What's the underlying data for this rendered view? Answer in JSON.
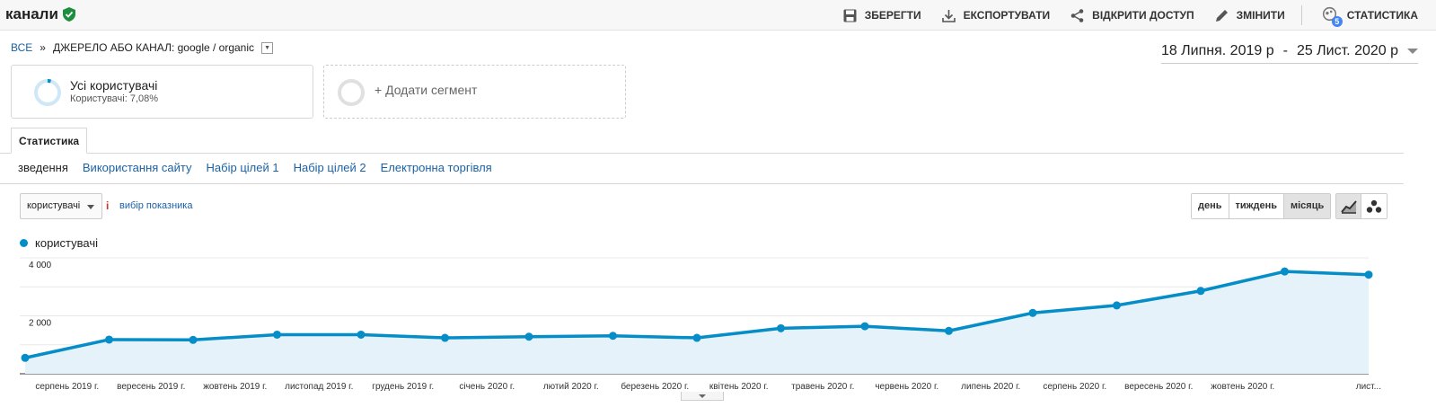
{
  "header": {
    "title": "канали",
    "actions": [
      {
        "label": "ЗБЕРЕГТИ",
        "icon": "save-icon"
      },
      {
        "label": "ЕКСПОРТУВАТИ",
        "icon": "download-icon"
      },
      {
        "label": "ВІДКРИТИ ДОСТУП",
        "icon": "share-icon"
      },
      {
        "label": "ЗМІНИТИ",
        "icon": "pencil-icon"
      },
      {
        "label": "СТАТИСТИКА",
        "icon": "insights-icon",
        "badge": "5"
      }
    ]
  },
  "breadcrumb": {
    "root": "ВСЕ",
    "separator": "»",
    "filter": "ДЖЕРЕЛО АБО КАНАЛ:",
    "value": "google / organic"
  },
  "date_range": {
    "start": "18 Липня. 2019 р",
    "dash": "-",
    "end": "25 Лист. 2020 р"
  },
  "segments": {
    "all_users": {
      "title": "Усі користувачі",
      "subtitle": "Користувачі: 7,08%"
    },
    "add": {
      "label": "+ Додати сегмент"
    }
  },
  "tabs": [
    {
      "label": "Статистика"
    }
  ],
  "subtabs": [
    {
      "label": "зведення"
    },
    {
      "label": "Використання сайту"
    },
    {
      "label": "Набір цілей 1"
    },
    {
      "label": "Набір цілей 2"
    },
    {
      "label": "Електронна торгівля"
    }
  ],
  "metric": {
    "selected": "користувачі",
    "info": "i",
    "pick": "вибір показника"
  },
  "granularity": [
    {
      "label": "день"
    },
    {
      "label": "тиждень"
    },
    {
      "label": "місяць"
    }
  ],
  "colors": {
    "series": "#058dc7",
    "fill": "#e6f2f9",
    "accent_link": "#1a62a6"
  },
  "chart_data": {
    "type": "line",
    "series": [
      {
        "name": "користувачі",
        "values": [
          550,
          1180,
          1170,
          1350,
          1350,
          1240,
          1280,
          1310,
          1240,
          1570,
          1640,
          1480,
          2100,
          2360,
          2860,
          3530,
          3420
        ]
      }
    ],
    "x_labels": [
      "серпень 2019 г.",
      "вересень 2019 г.",
      "жовтень 2019 г.",
      "листопад 2019 г.",
      "грудень 2019 г.",
      "січень 2020 г.",
      "лютий 2020 г.",
      "березень 2020 г.",
      "квітень 2020 г.",
      "травень 2020 г.",
      "червень 2020 г.",
      "липень 2020 г.",
      "серпень 2020 г.",
      "вересень 2020 г.",
      "жовтень 2020 г.",
      "лист..."
    ],
    "y_ticks": [
      {
        "value": 2000,
        "label": "2 000"
      },
      {
        "value": 4000,
        "label": "4 000"
      }
    ],
    "ylim": [
      0,
      4000
    ],
    "grid": true
  }
}
